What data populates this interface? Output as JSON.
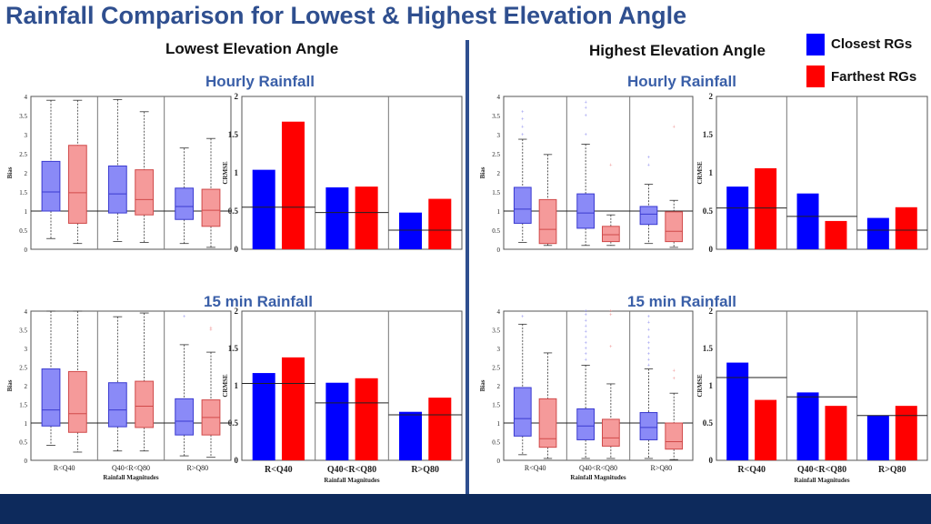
{
  "title": "Rainfall Comparison for Lowest & Highest Elevation Angle",
  "left_heading": "Lowest Elevation Angle",
  "right_heading": "Highest Elevation Angle",
  "sub_hourly": "Hourly Rainfall",
  "sub_15min": "15 min Rainfall",
  "legend": [
    {
      "label": "Closest RGs",
      "color": "#0000ff"
    },
    {
      "label": "Farthest RGs",
      "color": "#ff0000"
    }
  ],
  "colors": {
    "box_blue": "#8a8af7",
    "box_red": "#f59a9a",
    "bar_blue": "#0000ff",
    "bar_red": "#ff0000"
  },
  "chart_data": [
    {
      "id": "box-low-hourly",
      "type": "box",
      "ylabel": "Bias",
      "ylim": [
        0,
        4
      ],
      "yticks": [
        "0",
        "0.5",
        "1",
        "1.5",
        "2",
        "2.5",
        "3",
        "3.5",
        "4"
      ],
      "categories": [
        "",
        "",
        ""
      ],
      "xlabel": "",
      "ref_line": 1,
      "boxes": [
        {
          "group": 0,
          "series": "closest",
          "min": 0.28,
          "q1": 1.0,
          "median": 1.5,
          "q3": 2.3,
          "max": 3.9
        },
        {
          "group": 0,
          "series": "farthest",
          "min": 0.15,
          "q1": 0.68,
          "median": 1.48,
          "q3": 2.72,
          "max": 3.9
        },
        {
          "group": 1,
          "series": "closest",
          "min": 0.2,
          "q1": 0.95,
          "median": 1.45,
          "q3": 2.18,
          "max": 3.92
        },
        {
          "group": 1,
          "series": "farthest",
          "min": 0.18,
          "q1": 0.9,
          "median": 1.3,
          "q3": 2.08,
          "max": 3.6
        },
        {
          "group": 2,
          "series": "closest",
          "min": 0.15,
          "q1": 0.78,
          "median": 1.12,
          "q3": 1.6,
          "max": 2.65
        },
        {
          "group": 2,
          "series": "farthest",
          "min": 0.05,
          "q1": 0.6,
          "median": 1.02,
          "q3": 1.57,
          "max": 2.9
        }
      ],
      "outliers": []
    },
    {
      "id": "bar-low-hourly",
      "type": "bar",
      "ylabel": "CRMSE",
      "ylim": [
        0,
        2
      ],
      "yticks": [
        "0",
        "0.5",
        "1",
        "1.5",
        "2"
      ],
      "categories": [
        "",
        "",
        ""
      ],
      "xlabel": "",
      "series": [
        {
          "name": "Closest RGs",
          "values": [
            1.04,
            0.81,
            0.48
          ]
        },
        {
          "name": "Farthest RGs",
          "values": [
            1.67,
            0.82,
            0.66
          ]
        }
      ],
      "ref_lines": [
        0.55,
        0.48,
        0.25
      ]
    },
    {
      "id": "box-high-hourly",
      "type": "box",
      "ylabel": "Bias",
      "ylim": [
        0,
        4
      ],
      "yticks": [
        "0",
        "0.5",
        "1",
        "1.5",
        "2",
        "2.5",
        "3",
        "3.5",
        "4"
      ],
      "categories": [
        "",
        "",
        ""
      ],
      "xlabel": "",
      "ref_line": 1,
      "boxes": [
        {
          "group": 0,
          "series": "closest",
          "min": 0.18,
          "q1": 0.68,
          "median": 1.05,
          "q3": 1.62,
          "max": 2.88
        },
        {
          "group": 0,
          "series": "farthest",
          "min": 0.1,
          "q1": 0.15,
          "median": 0.52,
          "q3": 1.3,
          "max": 2.48
        },
        {
          "group": 1,
          "series": "closest",
          "min": 0.1,
          "q1": 0.55,
          "median": 0.95,
          "q3": 1.45,
          "max": 2.75
        },
        {
          "group": 1,
          "series": "farthest",
          "min": 0.1,
          "q1": 0.2,
          "median": 0.38,
          "q3": 0.6,
          "max": 0.9
        },
        {
          "group": 2,
          "series": "closest",
          "min": 0.15,
          "q1": 0.65,
          "median": 0.92,
          "q3": 1.12,
          "max": 1.7
        },
        {
          "group": 2,
          "series": "farthest",
          "min": 0.05,
          "q1": 0.2,
          "median": 0.47,
          "q3": 0.98,
          "max": 1.28
        }
      ],
      "outliers": [
        {
          "group": 0,
          "series": "closest",
          "values": [
            3.0,
            3.2,
            3.4,
            3.6
          ]
        },
        {
          "group": 1,
          "series": "closest",
          "values": [
            3.0,
            3.5,
            3.7,
            3.85
          ]
        },
        {
          "group": 1,
          "series": "farthest",
          "values": [
            2.2
          ]
        },
        {
          "group": 2,
          "series": "closest",
          "values": [
            2.2,
            2.4
          ]
        },
        {
          "group": 2,
          "series": "farthest",
          "values": [
            3.2
          ]
        }
      ]
    },
    {
      "id": "bar-high-hourly",
      "type": "bar",
      "ylabel": "CRMSE",
      "ylim": [
        0,
        2
      ],
      "yticks": [
        "0",
        "0.5",
        "1",
        "1.5",
        "2"
      ],
      "categories": [
        "",
        "",
        ""
      ],
      "xlabel": "",
      "series": [
        {
          "name": "Closest RGs",
          "values": [
            0.82,
            0.73,
            0.41
          ]
        },
        {
          "name": "Farthest RGs",
          "values": [
            1.06,
            0.37,
            0.55
          ]
        }
      ],
      "ref_lines": [
        0.54,
        0.43,
        0.25
      ]
    },
    {
      "id": "box-low-15min",
      "type": "box",
      "ylabel": "Bias",
      "ylim": [
        0,
        4
      ],
      "yticks": [
        "0",
        "0.5",
        "1",
        "1.5",
        "2",
        "2.5",
        "3",
        "3.5",
        "4"
      ],
      "categories": [
        "R<Q40",
        "Q40<R<Q80",
        "R>Q80"
      ],
      "xlabel": "Rainfall Magnitudes",
      "ref_line": 1,
      "boxes": [
        {
          "group": 0,
          "series": "closest",
          "min": 0.4,
          "q1": 0.92,
          "median": 1.35,
          "q3": 2.45,
          "max": 4.0
        },
        {
          "group": 0,
          "series": "farthest",
          "min": 0.22,
          "q1": 0.75,
          "median": 1.25,
          "q3": 2.38,
          "max": 4.0
        },
        {
          "group": 1,
          "series": "closest",
          "min": 0.25,
          "q1": 0.9,
          "median": 1.35,
          "q3": 2.08,
          "max": 3.85
        },
        {
          "group": 1,
          "series": "farthest",
          "min": 0.25,
          "q1": 0.88,
          "median": 1.45,
          "q3": 2.12,
          "max": 3.95
        },
        {
          "group": 2,
          "series": "closest",
          "min": 0.12,
          "q1": 0.68,
          "median": 1.05,
          "q3": 1.65,
          "max": 3.1
        },
        {
          "group": 2,
          "series": "farthest",
          "min": 0.08,
          "q1": 0.68,
          "median": 1.15,
          "q3": 1.62,
          "max": 2.9
        }
      ],
      "outliers": [
        {
          "group": 2,
          "series": "closest",
          "values": [
            3.85
          ]
        },
        {
          "group": 2,
          "series": "farthest",
          "values": [
            3.5,
            3.55
          ]
        }
      ]
    },
    {
      "id": "bar-low-15min",
      "type": "bar",
      "ylabel": "CRMSE",
      "ylim": [
        0,
        2
      ],
      "yticks": [
        "0",
        "0.5",
        "1",
        "1.5",
        "2"
      ],
      "categories": [
        "R<Q40",
        "Q40<R<Q80",
        "R>Q80"
      ],
      "xlabel": "Rainfall Magnitudes",
      "series": [
        {
          "name": "Closest RGs",
          "values": [
            1.17,
            1.04,
            0.65
          ]
        },
        {
          "name": "Farthest RGs",
          "values": [
            1.38,
            1.1,
            0.84
          ]
        }
      ],
      "ref_lines": [
        1.03,
        0.77,
        0.61
      ]
    },
    {
      "id": "box-high-15min",
      "type": "box",
      "ylabel": "Bias",
      "ylim": [
        0,
        4
      ],
      "yticks": [
        "0",
        "0.5",
        "1",
        "1.5",
        "2",
        "2.5",
        "3",
        "3.5",
        "4"
      ],
      "categories": [
        "R<Q40",
        "Q40<R<Q80",
        "R>Q80"
      ],
      "xlabel": "Rainfall Magnitudes",
      "ref_line": 1,
      "boxes": [
        {
          "group": 0,
          "series": "closest",
          "min": 0.15,
          "q1": 0.65,
          "median": 1.12,
          "q3": 1.95,
          "max": 3.65
        },
        {
          "group": 0,
          "series": "farthest",
          "min": 0.05,
          "q1": 0.35,
          "median": 0.58,
          "q3": 1.65,
          "max": 2.88
        },
        {
          "group": 1,
          "series": "closest",
          "min": 0.05,
          "q1": 0.55,
          "median": 0.92,
          "q3": 1.38,
          "max": 2.55
        },
        {
          "group": 1,
          "series": "farthest",
          "min": 0.05,
          "q1": 0.38,
          "median": 0.6,
          "q3": 1.1,
          "max": 2.05
        },
        {
          "group": 2,
          "series": "closest",
          "min": 0.05,
          "q1": 0.55,
          "median": 0.88,
          "q3": 1.28,
          "max": 2.45
        },
        {
          "group": 2,
          "series": "farthest",
          "min": 0.02,
          "q1": 0.3,
          "median": 0.5,
          "q3": 1.0,
          "max": 1.8
        }
      ],
      "outliers": [
        {
          "group": 0,
          "series": "closest",
          "values": [
            3.85
          ]
        },
        {
          "group": 1,
          "series": "closest",
          "values": [
            2.7,
            2.85,
            3.0,
            3.15,
            3.3,
            3.45,
            3.6,
            3.75,
            3.9,
            4.0
          ]
        },
        {
          "group": 1,
          "series": "farthest",
          "values": [
            3.05,
            3.9,
            4.0
          ]
        },
        {
          "group": 2,
          "series": "closest",
          "values": [
            2.55,
            2.7,
            2.85,
            3.0,
            3.15,
            3.3,
            3.5,
            3.7,
            3.85
          ]
        },
        {
          "group": 2,
          "series": "farthest",
          "values": [
            2.2,
            2.4
          ]
        }
      ]
    },
    {
      "id": "bar-high-15min",
      "type": "bar",
      "ylabel": "CRMSE",
      "ylim": [
        0,
        2
      ],
      "yticks": [
        "0",
        "0.5",
        "1",
        "1.5",
        "2"
      ],
      "categories": [
        "R<Q40",
        "Q40<R<Q80",
        "R>Q80"
      ],
      "xlabel": "Rainfall Magnitudes",
      "series": [
        {
          "name": "Closest RGs",
          "values": [
            1.31,
            0.91,
            0.6
          ]
        },
        {
          "name": "Farthest RGs",
          "values": [
            0.81,
            0.73,
            0.73
          ]
        }
      ],
      "ref_lines": [
        1.11,
        0.85,
        0.6
      ]
    }
  ]
}
